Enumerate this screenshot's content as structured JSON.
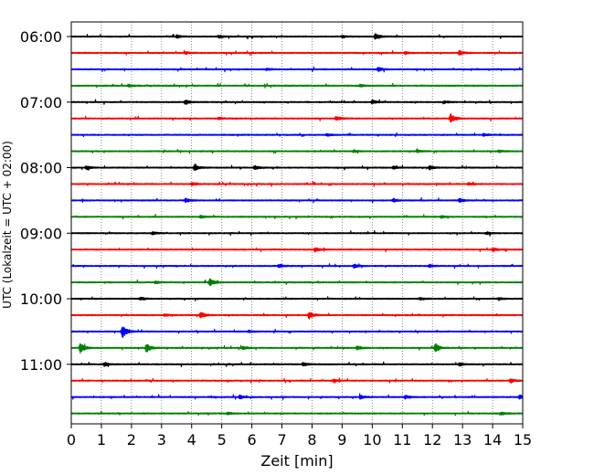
{
  "chart_data": {
    "type": "line",
    "title": "",
    "xlabel": "Zeit  [min]",
    "ylabel": "UTC (Lokalzeit = UTC + 02:00)",
    "xlim": [
      0,
      15
    ],
    "x_ticks": [
      0,
      1,
      2,
      3,
      4,
      5,
      6,
      7,
      8,
      9,
      10,
      11,
      12,
      13,
      14,
      15
    ],
    "x_grid": true,
    "row_interval_minutes": 15,
    "rows_start": "06:00",
    "y_tick_labels": [
      "06:00",
      "07:00",
      "08:00",
      "09:00",
      "10:00",
      "11:00"
    ],
    "trace_colors": [
      "#000000",
      "#ff0000",
      "#0000ff",
      "#008000"
    ],
    "traces": [
      {
        "start": "06:00",
        "color": "#000000",
        "events": [
          [
            10.1,
            0.8
          ],
          [
            3.5,
            0.45
          ],
          [
            4.9,
            0.35
          ],
          [
            9.0,
            0.3
          ]
        ]
      },
      {
        "start": "06:15",
        "color": "#ff0000",
        "events": [
          [
            12.9,
            0.6
          ],
          [
            3.8,
            0.3
          ],
          [
            11.1,
            0.3
          ]
        ]
      },
      {
        "start": "06:30",
        "color": "#0000ff",
        "events": [
          [
            10.2,
            0.55
          ],
          [
            6.5,
            0.25
          ]
        ]
      },
      {
        "start": "06:45",
        "color": "#008000",
        "events": [
          [
            1.9,
            0.3
          ],
          [
            9.6,
            0.3
          ]
        ]
      },
      {
        "start": "07:00",
        "color": "#000000",
        "events": [
          [
            3.8,
            0.6
          ],
          [
            10.0,
            0.5
          ],
          [
            12.4,
            0.3
          ]
        ]
      },
      {
        "start": "07:15",
        "color": "#ff0000",
        "events": [
          [
            12.6,
            1.2
          ],
          [
            8.8,
            0.55
          ],
          [
            4.9,
            0.3
          ]
        ]
      },
      {
        "start": "07:30",
        "color": "#0000ff",
        "events": [
          [
            8.5,
            0.3
          ],
          [
            13.7,
            0.3
          ]
        ]
      },
      {
        "start": "07:45",
        "color": "#008000",
        "events": [
          [
            9.4,
            0.3
          ],
          [
            11.5,
            0.3
          ],
          [
            14.2,
            0.3
          ]
        ]
      },
      {
        "start": "08:00",
        "color": "#000000",
        "events": [
          [
            4.1,
            0.8
          ],
          [
            6.1,
            0.55
          ],
          [
            11.9,
            0.55
          ],
          [
            0.5,
            0.5
          ],
          [
            10.7,
            0.35
          ]
        ]
      },
      {
        "start": "08:15",
        "color": "#ff0000",
        "events": [
          [
            4.0,
            0.35
          ],
          [
            13.2,
            0.3
          ]
        ]
      },
      {
        "start": "08:30",
        "color": "#0000ff",
        "events": [
          [
            3.8,
            0.5
          ],
          [
            10.7,
            0.45
          ],
          [
            12.9,
            0.45
          ]
        ]
      },
      {
        "start": "08:45",
        "color": "#008000",
        "events": [
          [
            4.3,
            0.3
          ],
          [
            12.3,
            0.3
          ]
        ]
      },
      {
        "start": "09:00",
        "color": "#000000",
        "events": [
          [
            2.7,
            0.35
          ],
          [
            13.8,
            0.3
          ]
        ]
      },
      {
        "start": "09:15",
        "color": "#ff0000",
        "events": [
          [
            8.1,
            0.5
          ],
          [
            14.0,
            0.4
          ]
        ]
      },
      {
        "start": "09:30",
        "color": "#0000ff",
        "events": [
          [
            9.4,
            0.5
          ],
          [
            6.9,
            0.45
          ],
          [
            11.9,
            0.35
          ]
        ]
      },
      {
        "start": "09:45",
        "color": "#008000",
        "events": [
          [
            4.6,
            1.0
          ],
          [
            2.8,
            0.35
          ]
        ]
      },
      {
        "start": "10:00",
        "color": "#000000",
        "events": [
          [
            2.3,
            0.35
          ],
          [
            11.6,
            0.3
          ],
          [
            14.2,
            0.3
          ]
        ]
      },
      {
        "start": "10:15",
        "color": "#ff0000",
        "events": [
          [
            7.9,
            0.9
          ],
          [
            4.3,
            0.8
          ],
          [
            3.1,
            0.3
          ]
        ]
      },
      {
        "start": "10:30",
        "color": "#0000ff",
        "events": [
          [
            1.7,
            1.7
          ],
          [
            5.9,
            0.3
          ]
        ]
      },
      {
        "start": "10:45",
        "color": "#008000",
        "events": [
          [
            0.3,
            1.3
          ],
          [
            2.5,
            1.2
          ],
          [
            12.1,
            1.2
          ],
          [
            9.5,
            0.55
          ],
          [
            5.7,
            0.4
          ]
        ]
      },
      {
        "start": "11:00",
        "color": "#000000",
        "events": [
          [
            1.1,
            0.5
          ],
          [
            7.7,
            0.45
          ],
          [
            12.9,
            0.4
          ]
        ]
      },
      {
        "start": "11:15",
        "color": "#ff0000",
        "events": [
          [
            14.6,
            0.55
          ],
          [
            8.7,
            0.4
          ]
        ]
      },
      {
        "start": "11:30",
        "color": "#0000ff",
        "events": [
          [
            14.9,
            0.55
          ],
          [
            9.6,
            0.5
          ],
          [
            5.6,
            0.45
          ],
          [
            11.1,
            0.45
          ]
        ]
      },
      {
        "start": "11:45",
        "color": "#008000",
        "events": [
          [
            14.3,
            0.35
          ],
          [
            5.2,
            0.3
          ]
        ]
      }
    ]
  }
}
